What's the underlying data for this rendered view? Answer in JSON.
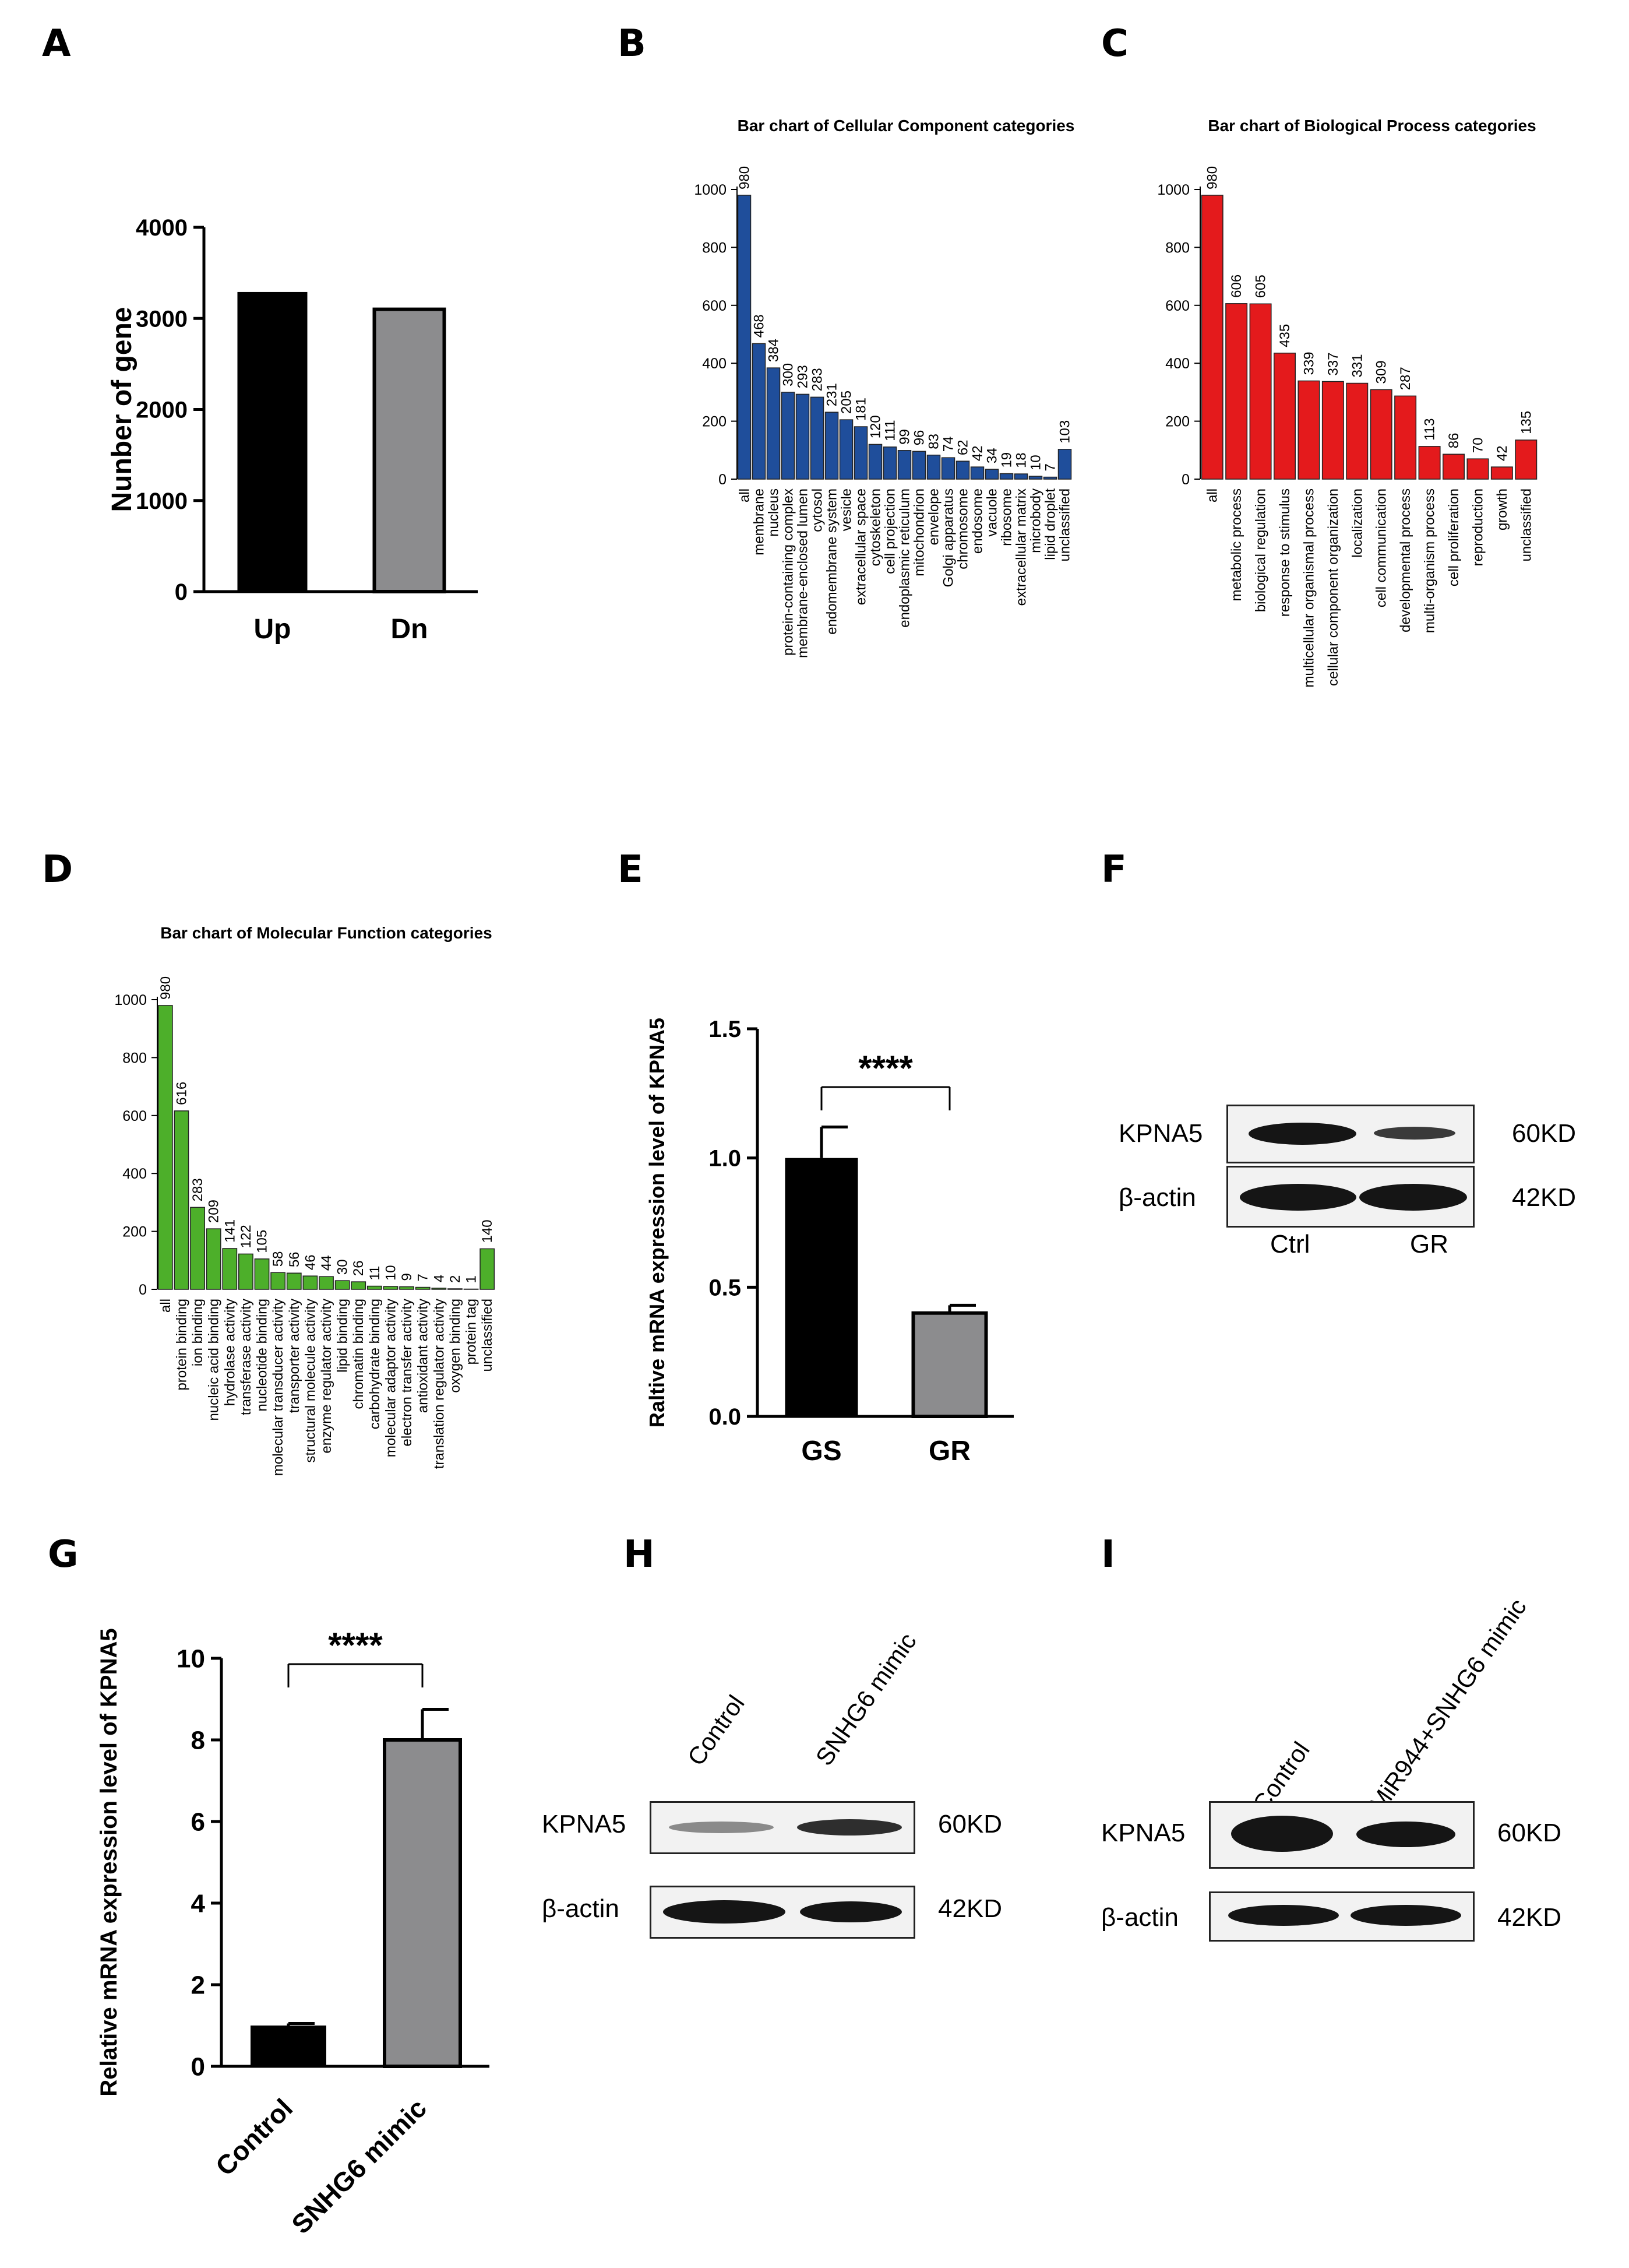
{
  "panels": {
    "A": "A",
    "B": "B",
    "C": "C",
    "D": "D",
    "E": "E",
    "F": "F",
    "G": "G",
    "H": "H",
    "I": "I"
  },
  "colors": {
    "black_bar": "#000000",
    "grey_bar": "#8c8c8e",
    "cc_blue": "#1f4e9b",
    "bp_red": "#e41a1c",
    "mf_green": "#4daf2a"
  },
  "chart_data": [
    {
      "id": "A",
      "type": "bar",
      "title": "",
      "ylabel": "Nunber of gene",
      "xlabel": "",
      "categories": [
        "Up",
        "Dn"
      ],
      "values": [
        3290,
        3100
      ],
      "ylim": [
        0,
        4000
      ],
      "yticks": [
        "0",
        "1000",
        "2000",
        "3000",
        "4000"
      ],
      "colors": [
        "#000000",
        "#8c8c8e"
      ]
    },
    {
      "id": "B",
      "type": "bar",
      "title": "Bar chart of Cellular Component categories",
      "ylim": [
        0,
        1000
      ],
      "yticks": [
        "0",
        "200",
        "400",
        "600",
        "800",
        "1000"
      ],
      "categories": [
        "all",
        "membrane",
        "nucleus",
        "protein-containing complex",
        "membrane-enclosed lumen",
        "cytosol",
        "endomembrane system",
        "vesicle",
        "extracellular space",
        "cytoskeleton",
        "cell projection",
        "endoplasmic reticulum",
        "mitochondrion",
        "envelope",
        "Golgi apparatus",
        "chromosome",
        "endosome",
        "vacuole",
        "ribosome",
        "extracellular matrix",
        "microbody",
        "lipid droplet",
        "unclassified"
      ],
      "values": [
        980,
        468,
        384,
        300,
        293,
        283,
        231,
        205,
        181,
        120,
        111,
        99,
        96,
        83,
        74,
        62,
        42,
        34,
        19,
        18,
        10,
        7,
        103
      ],
      "color": "#1f4e9b"
    },
    {
      "id": "C",
      "type": "bar",
      "title": "Bar chart of Biological Process categories",
      "ylim": [
        0,
        1000
      ],
      "yticks": [
        "0",
        "200",
        "400",
        "600",
        "800",
        "1000"
      ],
      "categories": [
        "all",
        "metabolic process",
        "biological regulation",
        "response to stimulus",
        "multicellular organismal process",
        "cellular component organization",
        "localization",
        "cell communication",
        "developmental process",
        "multi-organism process",
        "cell proliferation",
        "reproduction",
        "growth",
        "unclassified"
      ],
      "values": [
        980,
        606,
        605,
        435,
        339,
        337,
        331,
        309,
        287,
        113,
        86,
        70,
        42,
        135
      ],
      "color": "#e41a1c"
    },
    {
      "id": "D",
      "type": "bar",
      "title": "Bar chart of Molecular Function categories",
      "ylim": [
        0,
        1000
      ],
      "yticks": [
        "0",
        "200",
        "400",
        "600",
        "800",
        "1000"
      ],
      "categories": [
        "all",
        "protein binding",
        "ion binding",
        "nucleic acid binding",
        "hydrolase activity",
        "transferase activity",
        "nucleotide binding",
        "molecular transducer activity",
        "transporter activity",
        "structural molecule activity",
        "enzyme regulator activity",
        "lipid binding",
        "chromatin binding",
        "carbohydrate binding",
        "molecular adaptor activity",
        "electron transfer activity",
        "antioxidant activity",
        "translation regulator activity",
        "oxygen binding",
        "protein tag",
        "unclassified"
      ],
      "values": [
        980,
        616,
        283,
        209,
        141,
        122,
        105,
        58,
        56,
        46,
        44,
        30,
        26,
        11,
        10,
        9,
        7,
        4,
        2,
        1,
        140
      ],
      "color": "#4daf2a"
    },
    {
      "id": "E",
      "type": "bar",
      "title": "",
      "ylabel": "Raltive mRNA expression level of KPNA5",
      "categories": [
        "GS",
        "GR"
      ],
      "values": [
        1.0,
        0.4
      ],
      "errors": [
        0.12,
        0.03
      ],
      "ylim": [
        0,
        1.5
      ],
      "yticks": [
        "0.0",
        "0.5",
        "1.0",
        "1.5"
      ],
      "significance": "****",
      "colors": [
        "#000000",
        "#8c8c8e"
      ]
    },
    {
      "id": "G",
      "type": "bar",
      "title": "",
      "ylabel": "Relative mRNA expression level of KPNA5",
      "categories": [
        "Control",
        "SNHG6 mimic"
      ],
      "values": [
        1.0,
        8.0
      ],
      "errors": [
        0.05,
        0.75
      ],
      "ylim": [
        0,
        10
      ],
      "yticks": [
        "0",
        "2",
        "4",
        "6",
        "8",
        "10"
      ],
      "significance": "****",
      "colors": [
        "#000000",
        "#8c8c8e"
      ]
    }
  ],
  "blots": {
    "F": {
      "rows": [
        "KPNA5",
        "β-actin"
      ],
      "sizes": [
        "60KD",
        "42KD"
      ],
      "lanes": [
        "Ctrl",
        "GR"
      ]
    },
    "H": {
      "rows": [
        "KPNA5",
        "β-actin"
      ],
      "sizes": [
        "60KD",
        "42KD"
      ],
      "lanes": [
        "Control",
        "SNHG6 mimic"
      ]
    },
    "I": {
      "rows": [
        "KPNA5",
        "β-actin"
      ],
      "sizes": [
        "60KD",
        "42KD"
      ],
      "lanes": [
        "Control",
        "MiR944+SNHG6 mimic"
      ]
    }
  }
}
